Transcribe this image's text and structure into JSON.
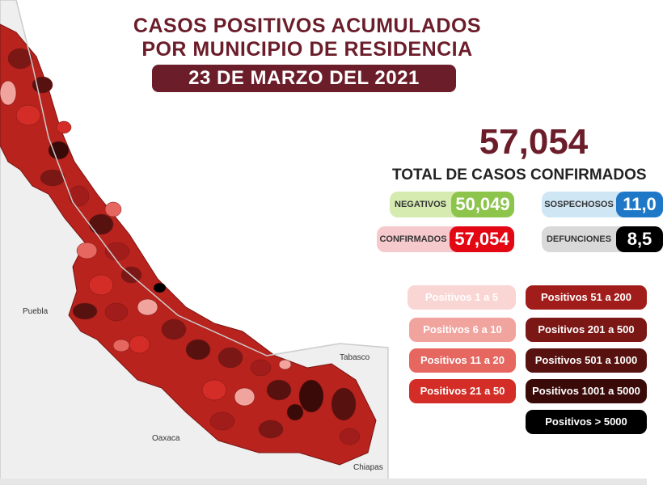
{
  "header": {
    "title_line1": "CASOS POSITIVOS ACUMULADOS",
    "title_line2": "POR MUNICIPIO DE RESIDENCIA",
    "date": "23 DE MARZO DEL 2021"
  },
  "totals": {
    "total_value": "57,054",
    "total_label": "TOTAL DE CASOS CONFIRMADOS",
    "negativos": {
      "label": "NEGATIVOS",
      "value": "50,049",
      "label_bg": "#d5ebb0",
      "value_bg": "#8cc44c"
    },
    "sospechosos": {
      "label": "SOSPECHOSOS",
      "value": "11,0",
      "label_bg": "#cfe6f5",
      "value_bg": "#1f77c8"
    },
    "confirmados": {
      "label": "CONFIRMADOS",
      "value": "57,054",
      "label_bg": "#f6c9cc",
      "value_bg": "#e30613"
    },
    "defunciones": {
      "label": "DEFUNCIONES",
      "value": "8,5",
      "label_bg": "#d9d9d9",
      "value_bg": "#000000"
    }
  },
  "legend": {
    "items": [
      {
        "label": "Positivos 1 a 5",
        "color": "#f9d6d4",
        "text_color": "#ffffff"
      },
      {
        "label": "Positivos 6 a 10",
        "color": "#f1a39e",
        "text_color": "#ffffff"
      },
      {
        "label": "Positivos 11 a 20",
        "color": "#e66660",
        "text_color": "#ffffff"
      },
      {
        "label": "Positivos 21 a 50",
        "color": "#d42c26",
        "text_color": "#ffffff"
      },
      {
        "label": "Positivos 51 a 200",
        "color": "#a11d1b",
        "text_color": "#ffffff"
      },
      {
        "label": "Positivos 201 a 500",
        "color": "#7b1715",
        "text_color": "#ffffff"
      },
      {
        "label": "Positivos 501 a 1000",
        "color": "#571210",
        "text_color": "#ffffff"
      },
      {
        "label": "Positivos 1001 a 5000",
        "color": "#3a0a09",
        "text_color": "#ffffff"
      },
      {
        "label": "Positivos > 5000",
        "color": "#000000",
        "text_color": "#ffffff"
      }
    ]
  },
  "map": {
    "labels": {
      "puebla": "Puebla",
      "oaxaca": "Oaxaca",
      "tabasco": "Tabasco",
      "chiapas": "Chiapas"
    }
  }
}
